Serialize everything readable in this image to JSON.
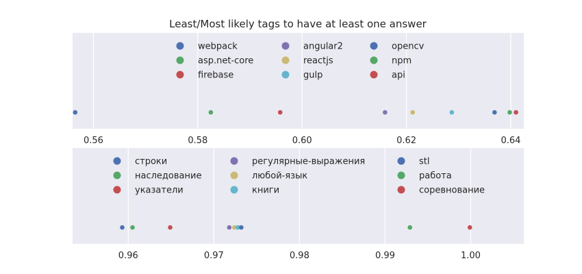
{
  "chart_data": [
    {
      "type": "scatter",
      "title": "Least/Most likely tags to have at least one answer",
      "xlabel": "",
      "ylabel": "",
      "xlim": [
        0.556,
        0.6425
      ],
      "xticks": [
        0.56,
        0.58,
        0.6,
        0.62,
        0.64
      ],
      "xtick_labels": [
        "0.56",
        "0.58",
        "0.60",
        "0.62",
        "0.64"
      ],
      "grid": true,
      "legend_position": "top",
      "points": [
        {
          "name": "webpack",
          "x": 0.5565,
          "color": "#4c72b0"
        },
        {
          "name": "asp.net-core",
          "x": 0.5825,
          "color": "#55a868"
        },
        {
          "name": "firebase",
          "x": 0.5958,
          "color": "#c44e52"
        },
        {
          "name": "angular2",
          "x": 0.6159,
          "color": "#8172b2"
        },
        {
          "name": "reactjs",
          "x": 0.6212,
          "color": "#ccb974"
        },
        {
          "name": "gulp",
          "x": 0.6287,
          "color": "#64b5cd"
        },
        {
          "name": "opencv",
          "x": 0.6369,
          "color": "#4c72b0"
        },
        {
          "name": "npm",
          "x": 0.6398,
          "color": "#55a868"
        },
        {
          "name": "api",
          "x": 0.641,
          "color": "#c44e52"
        }
      ]
    },
    {
      "type": "scatter",
      "title": "",
      "xlabel": "",
      "ylabel": "",
      "xlim": [
        0.9535,
        1.0062
      ],
      "xticks": [
        0.96,
        0.97,
        0.98,
        0.99,
        1.0
      ],
      "xtick_labels": [
        "0.96",
        "0.97",
        "0.98",
        "0.99",
        "1.00"
      ],
      "grid": true,
      "legend_position": "top",
      "points": [
        {
          "name": "строки",
          "x": 0.9593,
          "color": "#4c72b0"
        },
        {
          "name": "наследование",
          "x": 0.9605,
          "color": "#55a868"
        },
        {
          "name": "указатели",
          "x": 0.9649,
          "color": "#c44e52"
        },
        {
          "name": "регулярные-выражения",
          "x": 0.9718,
          "color": "#8172b2"
        },
        {
          "name": "любой-язык",
          "x": 0.9724,
          "color": "#ccb974"
        },
        {
          "name": "книги",
          "x": 0.9728,
          "color": "#64b5cd"
        },
        {
          "name": "stl",
          "x": 0.9732,
          "color": "#4c72b0"
        },
        {
          "name": "работа",
          "x": 0.9929,
          "color": "#55a868"
        },
        {
          "name": "соревнование",
          "x": 0.9999,
          "color": "#c44e52"
        }
      ]
    }
  ]
}
